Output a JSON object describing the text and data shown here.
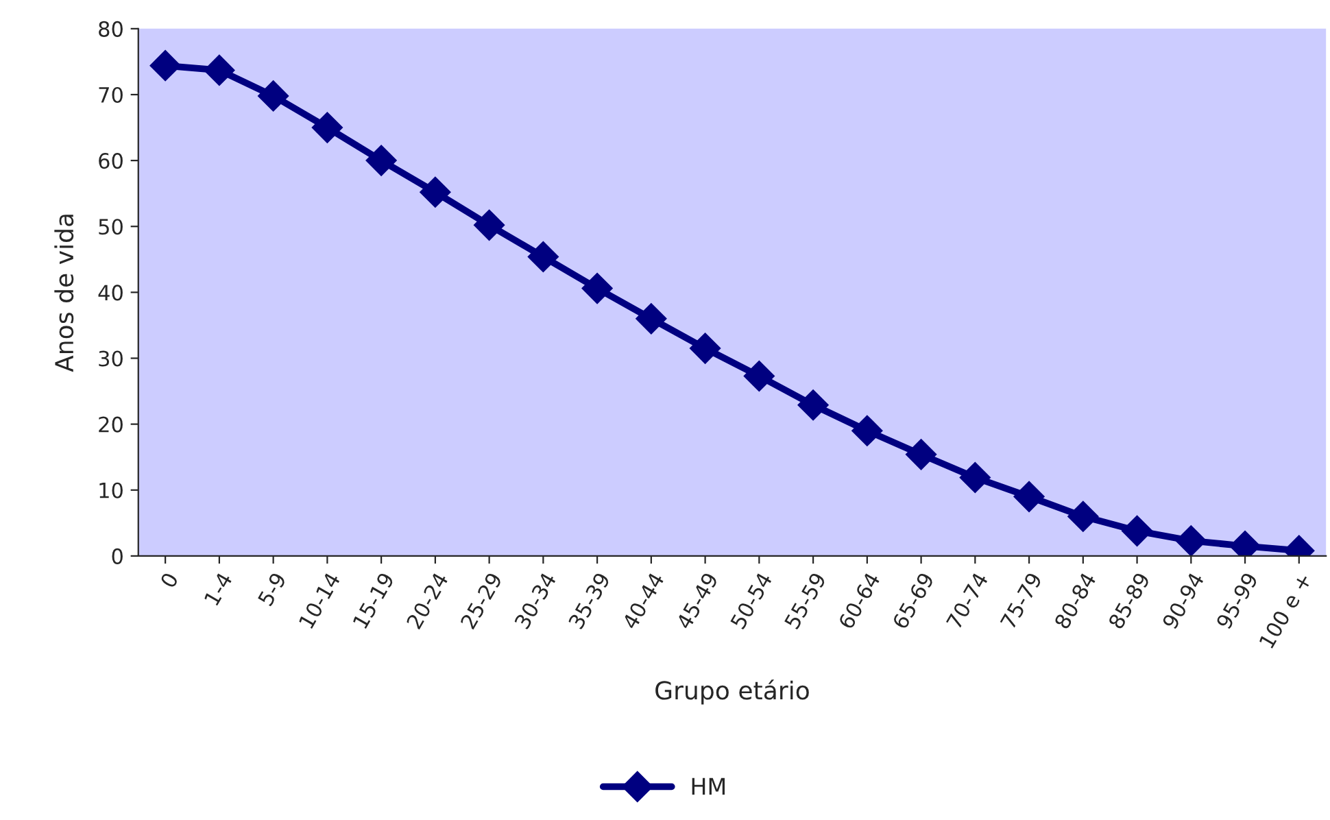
{
  "chart_data": {
    "type": "line",
    "xlabel": "Grupo etário",
    "ylabel": "Anos de vida",
    "categories": [
      "0",
      "1-4",
      "5-9",
      "10-14",
      "15-19",
      "20-24",
      "25-29",
      "30-34",
      "35-39",
      "40-44",
      "45-49",
      "50-54",
      "55-59",
      "60-64",
      "65-69",
      "70-74",
      "75-79",
      "80-84",
      "85-89",
      "90-94",
      "95-99",
      "100 e +"
    ],
    "series": [
      {
        "name": "HM",
        "color": "#000080",
        "values": [
          74.4,
          73.7,
          69.8,
          65.0,
          60.0,
          55.2,
          50.2,
          45.4,
          40.6,
          36.0,
          31.5,
          27.3,
          22.9,
          19.0,
          15.4,
          11.9,
          9.0,
          6.0,
          3.8,
          2.3,
          1.5,
          0.8
        ]
      }
    ],
    "ylim": [
      0,
      80
    ],
    "yticks": [
      0,
      10,
      20,
      30,
      40,
      50,
      60,
      70,
      80
    ],
    "grid": false,
    "legend": "bottom",
    "marker": "diamond",
    "line_style": "solid"
  }
}
